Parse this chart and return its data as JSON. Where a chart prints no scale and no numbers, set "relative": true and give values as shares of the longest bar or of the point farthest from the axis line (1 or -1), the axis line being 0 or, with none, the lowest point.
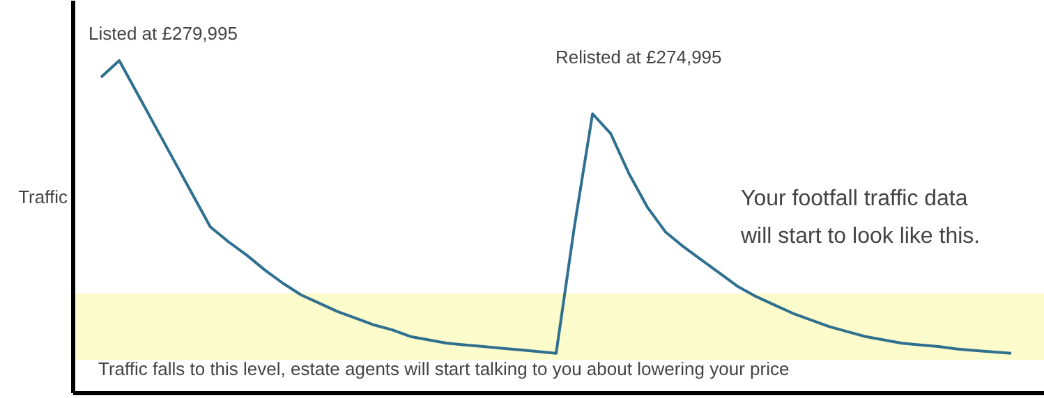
{
  "chart_data": {
    "type": "line",
    "relative": true,
    "ylabel": "Traffic",
    "categories": [
      null,
      null,
      null,
      null,
      null,
      null,
      null,
      null,
      null,
      null,
      null,
      null,
      null,
      null,
      null,
      null,
      null,
      null,
      null,
      null,
      null,
      null,
      null,
      null,
      null,
      null,
      null,
      null,
      null,
      null,
      null,
      null,
      null,
      null,
      null,
      null,
      null,
      null,
      null,
      null,
      null,
      null,
      null,
      null,
      null,
      null,
      null,
      null,
      null,
      null,
      null
    ],
    "series": [
      {
        "color": "#2f6f8f",
        "values": [
          0.95,
          1.0,
          0.9,
          0.8,
          0.7,
          0.6,
          0.5,
          0.455,
          0.415,
          0.37,
          0.33,
          0.295,
          0.27,
          0.245,
          0.225,
          0.205,
          0.19,
          0.17,
          0.16,
          0.15,
          0.145,
          0.14,
          0.135,
          0.13,
          0.125,
          0.12,
          0.5,
          0.84,
          0.78,
          0.66,
          0.56,
          0.485,
          0.44,
          0.4,
          0.36,
          0.32,
          0.29,
          0.265,
          0.24,
          0.22,
          0.2,
          0.185,
          0.17,
          0.16,
          0.15,
          0.145,
          0.14,
          0.133,
          0.128,
          0.124,
          0.12
        ]
      }
    ],
    "bands": [
      {
        "axis": "y",
        "from": 0.1,
        "to": 0.3,
        "color": "#fbfbcb",
        "label": "Traffic falls to this level, estate agents will start talking to you about lowering your price"
      }
    ],
    "annotations": [
      "Listed at £279,995",
      "Relisted at £274,995",
      "Your footfall traffic data\nwill start to look like this."
    ],
    "marker": "none",
    "line_style": "solid"
  }
}
